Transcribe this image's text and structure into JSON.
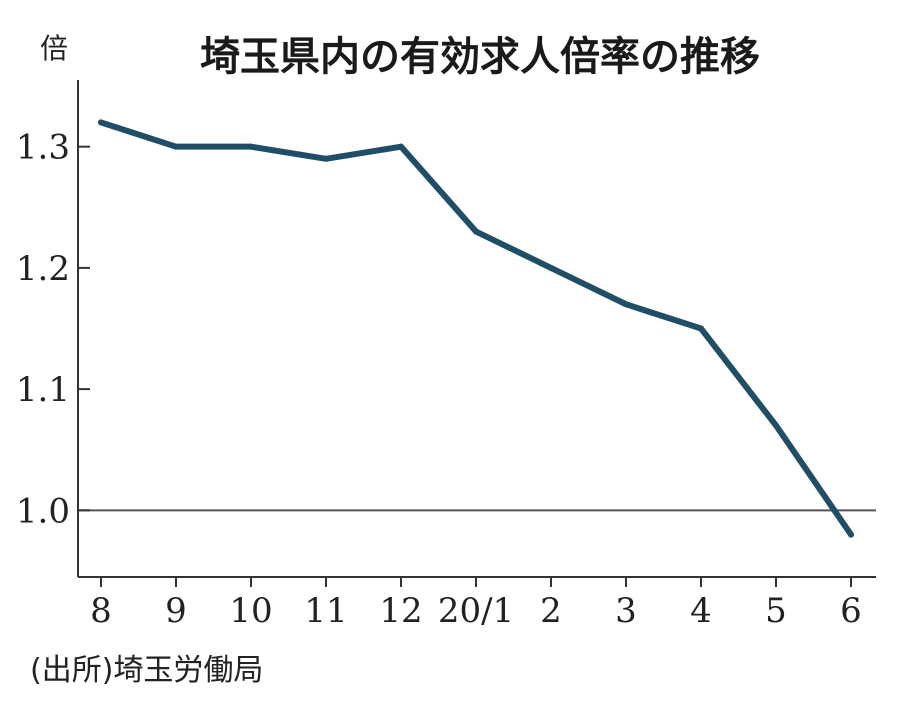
{
  "chart_data": {
    "type": "line",
    "title": "埼玉県内の有効求人倍率の推移",
    "yunit": "倍",
    "categories": [
      "8",
      "9",
      "10",
      "11",
      "12",
      "20/1",
      "2",
      "3",
      "4",
      "5",
      "6"
    ],
    "series": [
      {
        "values": [
          1.32,
          1.3,
          1.3,
          1.29,
          1.3,
          1.23,
          1.2,
          1.17,
          1.15,
          1.07,
          0.98
        ]
      }
    ],
    "ylim": [
      0.945,
      1.355
    ],
    "yticks": [
      1.0,
      1.1,
      1.2,
      1.3
    ],
    "ytick_labels": [
      "1.0",
      "1.1",
      "1.2",
      "1.3"
    ],
    "reference_line": 1.0,
    "grid": false,
    "source": "(出所)埼玉労働局"
  },
  "colors": {
    "line": "#1f4e66",
    "axis": "#333333",
    "reference": "#555555"
  }
}
